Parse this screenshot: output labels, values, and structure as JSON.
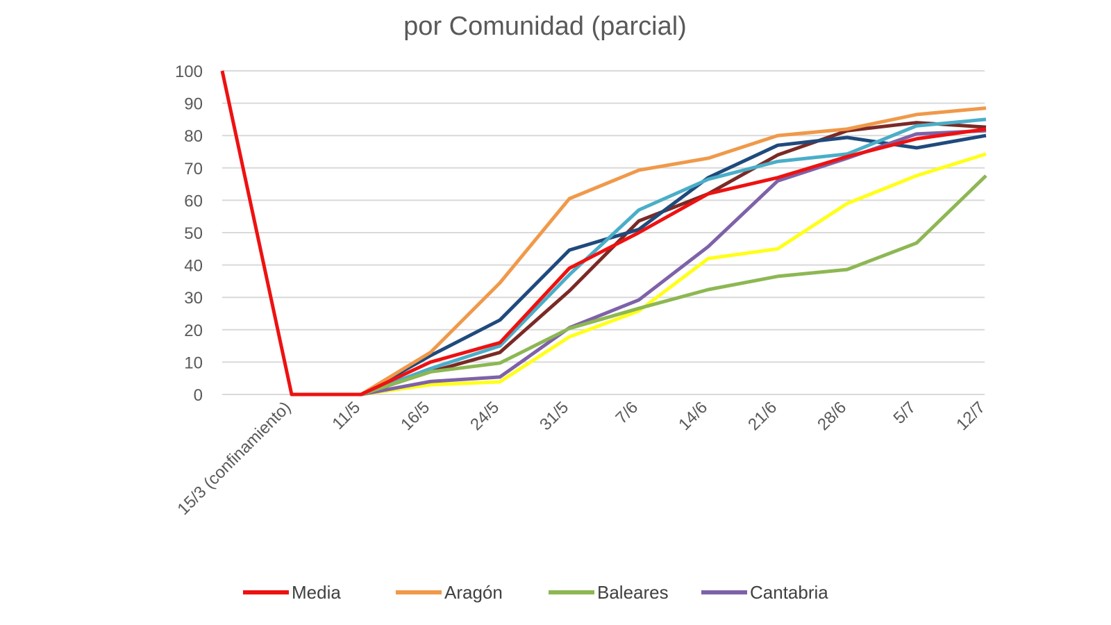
{
  "chart_data": {
    "type": "line",
    "title": "por Comunidad (parcial)",
    "xlabel": "",
    "ylabel": "",
    "ylim": [
      0,
      100
    ],
    "yticks": [
      0,
      10,
      20,
      30,
      40,
      50,
      60,
      70,
      80,
      90,
      100
    ],
    "grid": true,
    "legend_position": "bottom",
    "categories": [
      "",
      "15/3 (confinamiento)",
      "11/5",
      "16/5",
      "24/5",
      "31/5",
      "7/6",
      "14/6",
      "21/6",
      "28/6",
      "5/7",
      "12/7"
    ],
    "series": [
      {
        "name": "Media",
        "color": "#ee1111",
        "values": [
          100,
          0,
          0,
          10,
          16,
          39,
          50,
          62,
          67,
          73.5,
          79,
          82
        ]
      },
      {
        "name": "Aragón",
        "color": "#f0994a",
        "values": [
          null,
          0,
          0,
          13,
          34.5,
          60.5,
          69.3,
          73,
          80,
          82,
          86.5,
          88.5
        ]
      },
      {
        "name": "Baleares",
        "color": "#8db753",
        "values": [
          null,
          0,
          0,
          7,
          9.7,
          20.4,
          26.6,
          32.4,
          36.5,
          38.6,
          46.8,
          67.6
        ]
      },
      {
        "name": "Cantabria",
        "color": "#7e62a8",
        "values": [
          null,
          0,
          0,
          4,
          5.4,
          20.6,
          29.2,
          45.7,
          66,
          73,
          80.5,
          81.5
        ]
      },
      {
        "name": "",
        "color": "#ffff1a",
        "values": [
          null,
          0,
          0,
          3,
          3.9,
          17.8,
          25.8,
          42,
          45,
          59,
          67.6,
          74.3
        ]
      },
      {
        "name": "",
        "color": "#4aaec8",
        "values": [
          null,
          0,
          0,
          8,
          15,
          37,
          57,
          66.5,
          72,
          74.3,
          83,
          85
        ]
      },
      {
        "name": "",
        "color": "#1f4a7c",
        "values": [
          null,
          0,
          0,
          12,
          23,
          44.6,
          51,
          67,
          77,
          79.4,
          76.2,
          80
        ]
      },
      {
        "name": "",
        "color": "#7a2a26",
        "values": [
          null,
          0,
          0,
          7,
          13,
          32,
          53.6,
          62,
          74,
          81.5,
          84,
          82.6
        ]
      }
    ]
  }
}
